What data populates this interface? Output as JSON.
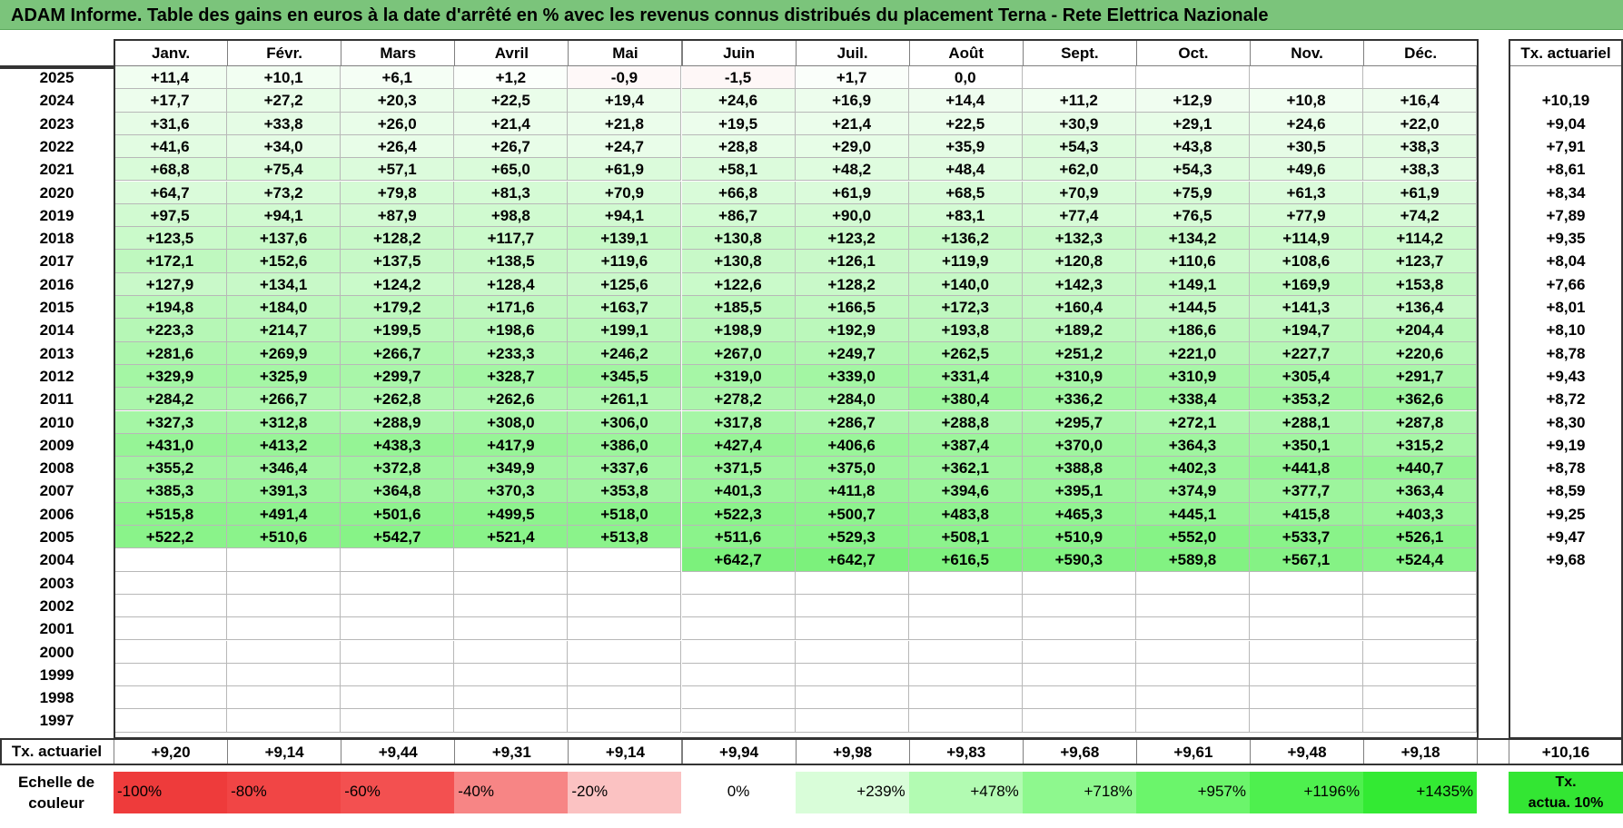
{
  "title": "ADAM Informe. Table des gains en euros à la date d'arrêté en % avec les revenus connus distribués du placement Terna - Rete Elettrica Nazionale",
  "months": [
    "Janv.",
    "Févr.",
    "Mars",
    "Avril",
    "Mai",
    "Juin",
    "Juil.",
    "Août",
    "Sept.",
    "Oct.",
    "Nov.",
    "Déc."
  ],
  "tx_header": "Tx. actuariel",
  "rows": [
    {
      "year": "2025",
      "values": [
        "+11,4",
        "+10,1",
        "+6,1",
        "+1,2",
        "-0,9",
        "-1,5",
        "+1,7",
        "0,0",
        "",
        "",
        "",
        ""
      ],
      "tx": ""
    },
    {
      "year": "2024",
      "values": [
        "+17,7",
        "+27,2",
        "+20,3",
        "+22,5",
        "+19,4",
        "+24,6",
        "+16,9",
        "+14,4",
        "+11,2",
        "+12,9",
        "+10,8",
        "+16,4"
      ],
      "tx": "+10,19"
    },
    {
      "year": "2023",
      "values": [
        "+31,6",
        "+33,8",
        "+26,0",
        "+21,4",
        "+21,8",
        "+19,5",
        "+21,4",
        "+22,5",
        "+30,9",
        "+29,1",
        "+24,6",
        "+22,0"
      ],
      "tx": "+9,04"
    },
    {
      "year": "2022",
      "values": [
        "+41,6",
        "+34,0",
        "+26,4",
        "+26,7",
        "+24,7",
        "+28,8",
        "+29,0",
        "+35,9",
        "+54,3",
        "+43,8",
        "+30,5",
        "+38,3"
      ],
      "tx": "+7,91"
    },
    {
      "year": "2021",
      "values": [
        "+68,8",
        "+75,4",
        "+57,1",
        "+65,0",
        "+61,9",
        "+58,1",
        "+48,2",
        "+48,4",
        "+62,0",
        "+54,3",
        "+49,6",
        "+38,3"
      ],
      "tx": "+8,61"
    },
    {
      "year": "2020",
      "values": [
        "+64,7",
        "+73,2",
        "+79,8",
        "+81,3",
        "+70,9",
        "+66,8",
        "+61,9",
        "+68,5",
        "+70,9",
        "+75,9",
        "+61,3",
        "+61,9"
      ],
      "tx": "+8,34"
    },
    {
      "year": "2019",
      "values": [
        "+97,5",
        "+94,1",
        "+87,9",
        "+98,8",
        "+94,1",
        "+86,7",
        "+90,0",
        "+83,1",
        "+77,4",
        "+76,5",
        "+77,9",
        "+74,2"
      ],
      "tx": "+7,89"
    },
    {
      "year": "2018",
      "values": [
        "+123,5",
        "+137,6",
        "+128,2",
        "+117,7",
        "+139,1",
        "+130,8",
        "+123,2",
        "+136,2",
        "+132,3",
        "+134,2",
        "+114,9",
        "+114,2"
      ],
      "tx": "+9,35"
    },
    {
      "year": "2017",
      "values": [
        "+172,1",
        "+152,6",
        "+137,5",
        "+138,5",
        "+119,6",
        "+130,8",
        "+126,1",
        "+119,9",
        "+120,8",
        "+110,6",
        "+108,6",
        "+123,7"
      ],
      "tx": "+8,04"
    },
    {
      "year": "2016",
      "values": [
        "+127,9",
        "+134,1",
        "+124,2",
        "+128,4",
        "+125,6",
        "+122,6",
        "+128,2",
        "+140,0",
        "+142,3",
        "+149,1",
        "+169,9",
        "+153,8"
      ],
      "tx": "+7,66"
    },
    {
      "year": "2015",
      "values": [
        "+194,8",
        "+184,0",
        "+179,2",
        "+171,6",
        "+163,7",
        "+185,5",
        "+166,5",
        "+172,3",
        "+160,4",
        "+144,5",
        "+141,3",
        "+136,4"
      ],
      "tx": "+8,01"
    },
    {
      "year": "2014",
      "values": [
        "+223,3",
        "+214,7",
        "+199,5",
        "+198,6",
        "+199,1",
        "+198,9",
        "+192,9",
        "+193,8",
        "+189,2",
        "+186,6",
        "+194,7",
        "+204,4"
      ],
      "tx": "+8,10"
    },
    {
      "year": "2013",
      "values": [
        "+281,6",
        "+269,9",
        "+266,7",
        "+233,3",
        "+246,2",
        "+267,0",
        "+249,7",
        "+262,5",
        "+251,2",
        "+221,0",
        "+227,7",
        "+220,6"
      ],
      "tx": "+8,78"
    },
    {
      "year": "2012",
      "values": [
        "+329,9",
        "+325,9",
        "+299,7",
        "+328,7",
        "+345,5",
        "+319,0",
        "+339,0",
        "+331,4",
        "+310,9",
        "+310,9",
        "+305,4",
        "+291,7"
      ],
      "tx": "+9,43"
    },
    {
      "year": "2011",
      "values": [
        "+284,2",
        "+266,7",
        "+262,8",
        "+262,6",
        "+261,1",
        "+278,2",
        "+284,0",
        "+380,4",
        "+336,2",
        "+338,4",
        "+353,2",
        "+362,6"
      ],
      "tx": "+8,72"
    },
    {
      "year": "2010",
      "values": [
        "+327,3",
        "+312,8",
        "+288,9",
        "+308,0",
        "+306,0",
        "+317,8",
        "+286,7",
        "+288,8",
        "+295,7",
        "+272,1",
        "+288,1",
        "+287,8"
      ],
      "tx": "+8,30"
    },
    {
      "year": "2009",
      "values": [
        "+431,0",
        "+413,2",
        "+438,3",
        "+417,9",
        "+386,0",
        "+427,4",
        "+406,6",
        "+387,4",
        "+370,0",
        "+364,3",
        "+350,1",
        "+315,2"
      ],
      "tx": "+9,19"
    },
    {
      "year": "2008",
      "values": [
        "+355,2",
        "+346,4",
        "+372,8",
        "+349,9",
        "+337,6",
        "+371,5",
        "+375,0",
        "+362,1",
        "+388,8",
        "+402,3",
        "+441,8",
        "+440,7"
      ],
      "tx": "+8,78"
    },
    {
      "year": "2007",
      "values": [
        "+385,3",
        "+391,3",
        "+364,8",
        "+370,3",
        "+353,8",
        "+401,3",
        "+411,8",
        "+394,6",
        "+395,1",
        "+374,9",
        "+377,7",
        "+363,4"
      ],
      "tx": "+8,59"
    },
    {
      "year": "2006",
      "values": [
        "+515,8",
        "+491,4",
        "+501,6",
        "+499,5",
        "+518,0",
        "+522,3",
        "+500,7",
        "+483,8",
        "+465,3",
        "+445,1",
        "+415,8",
        "+403,3"
      ],
      "tx": "+9,25"
    },
    {
      "year": "2005",
      "values": [
        "+522,2",
        "+510,6",
        "+542,7",
        "+521,4",
        "+513,8",
        "+511,6",
        "+529,3",
        "+508,1",
        "+510,9",
        "+552,0",
        "+533,7",
        "+526,1"
      ],
      "tx": "+9,47"
    },
    {
      "year": "2004",
      "values": [
        "",
        "",
        "",
        "",
        "",
        "+642,7",
        "+642,7",
        "+616,5",
        "+590,3",
        "+589,8",
        "+567,1",
        "+524,4"
      ],
      "tx": "+9,68"
    },
    {
      "year": "2003",
      "values": [
        "",
        "",
        "",
        "",
        "",
        "",
        "",
        "",
        "",
        "",
        "",
        ""
      ],
      "tx": ""
    },
    {
      "year": "2002",
      "values": [
        "",
        "",
        "",
        "",
        "",
        "",
        "",
        "",
        "",
        "",
        "",
        ""
      ],
      "tx": ""
    },
    {
      "year": "2001",
      "values": [
        "",
        "",
        "",
        "",
        "",
        "",
        "",
        "",
        "",
        "",
        "",
        ""
      ],
      "tx": ""
    },
    {
      "year": "2000",
      "values": [
        "",
        "",
        "",
        "",
        "",
        "",
        "",
        "",
        "",
        "",
        "",
        ""
      ],
      "tx": ""
    },
    {
      "year": "1999",
      "values": [
        "",
        "",
        "",
        "",
        "",
        "",
        "",
        "",
        "",
        "",
        "",
        ""
      ],
      "tx": ""
    },
    {
      "year": "1998",
      "values": [
        "",
        "",
        "",
        "",
        "",
        "",
        "",
        "",
        "",
        "",
        "",
        ""
      ],
      "tx": ""
    },
    {
      "year": "1997",
      "values": [
        "",
        "",
        "",
        "",
        "",
        "",
        "",
        "",
        "",
        "",
        "",
        ""
      ],
      "tx": ""
    }
  ],
  "footer": {
    "label": "Tx. actuariel",
    "values": [
      "+9,20",
      "+9,14",
      "+9,44",
      "+9,31",
      "+9,14",
      "+9,94",
      "+9,98",
      "+9,83",
      "+9,68",
      "+9,61",
      "+9,48",
      "+9,18"
    ],
    "tx": "+10,16"
  },
  "legend": {
    "label_line1": "Echelle de",
    "label_line2": "couleur",
    "items": [
      {
        "text": "-100%",
        "color": "#ee3b3b"
      },
      {
        "text": "-80%",
        "color": "#f14545"
      },
      {
        "text": "-60%",
        "color": "#f35050"
      },
      {
        "text": "-40%",
        "color": "#f78585"
      },
      {
        "text": "-20%",
        "color": "#fbc2c2"
      },
      {
        "text": "0%",
        "color": "#ffffff"
      },
      {
        "text": "+239%",
        "color": "#d9fdd9"
      },
      {
        "text": "+478%",
        "color": "#b2fbb2"
      },
      {
        "text": "+718%",
        "color": "#8ef88e"
      },
      {
        "text": "+957%",
        "color": "#6bf56b"
      },
      {
        "text": "+1196%",
        "color": "#4ef04e"
      },
      {
        "text": "+1435%",
        "color": "#33ea33"
      }
    ],
    "actua_line1": "Tx.",
    "actua_line2": "actua. 10%",
    "actua_color": "#33e633"
  },
  "colors": {
    "title_bg": "#7bc47b",
    "positive_max": "#33ea33",
    "negative_max": "#ee3b3b"
  }
}
